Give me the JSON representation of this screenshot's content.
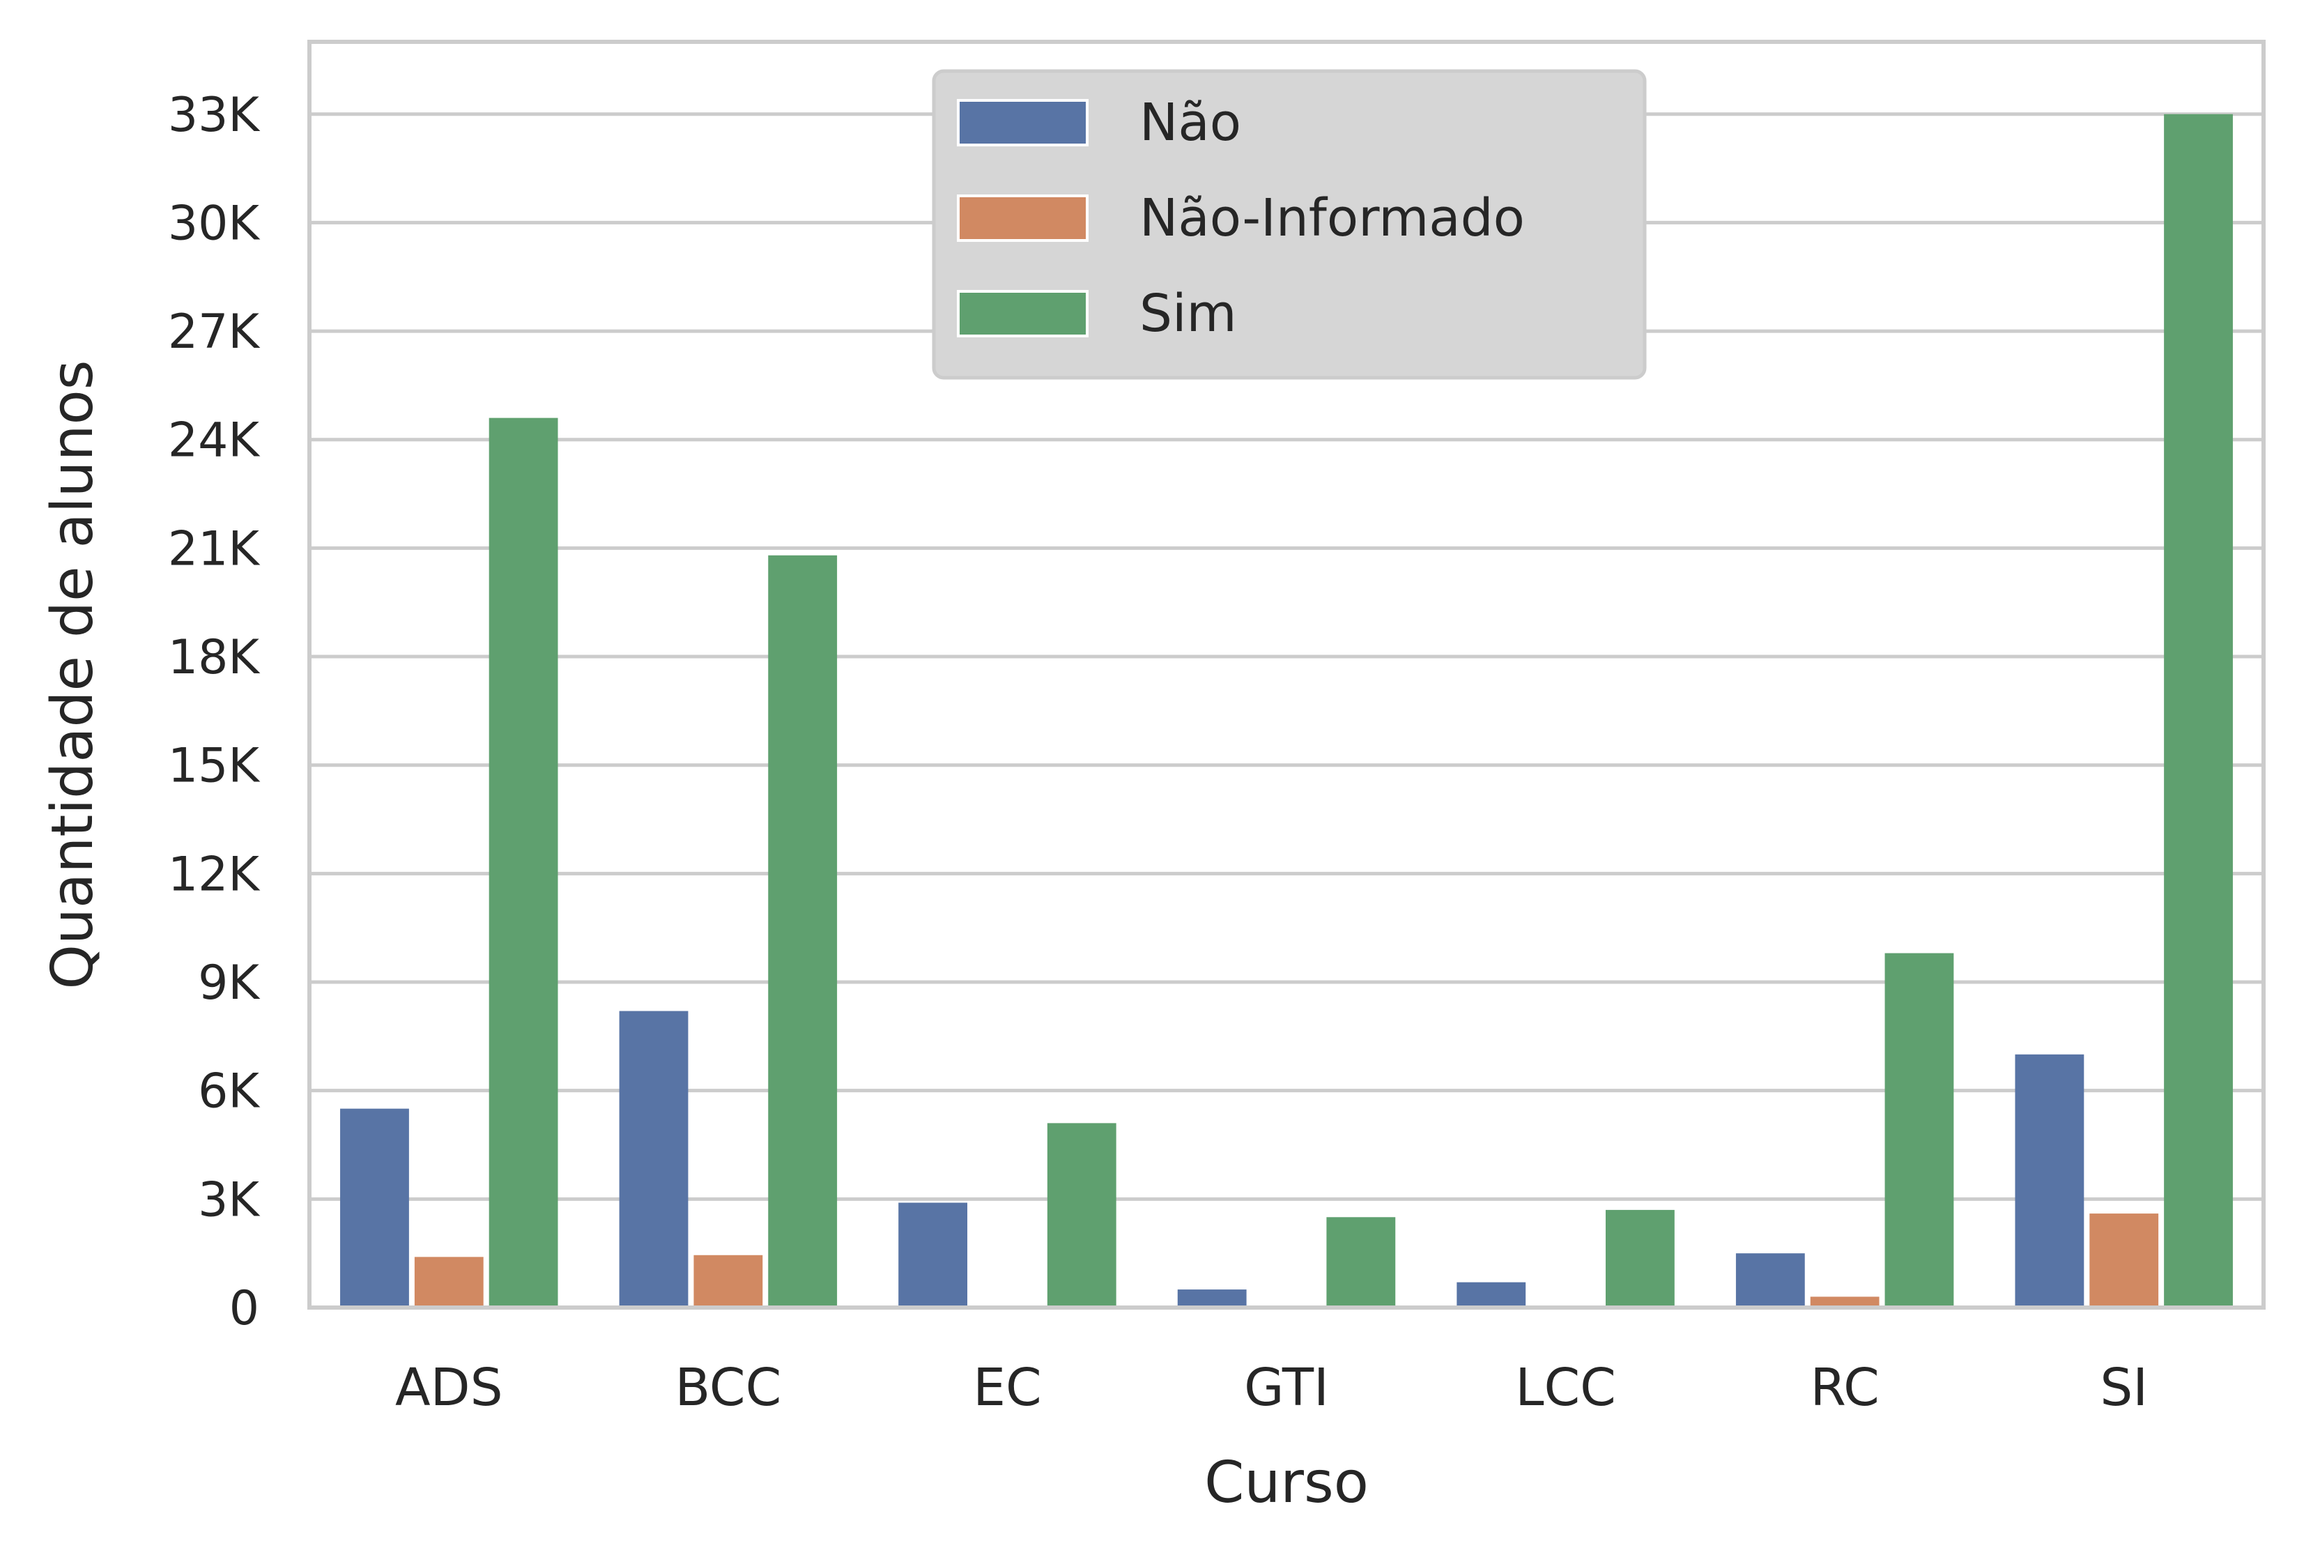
{
  "chart_data": {
    "type": "bar",
    "xlabel": "Curso",
    "ylabel": "Quantidade de alunos",
    "categories": [
      "ADS",
      "BCC",
      "EC",
      "GTI",
      "LCC",
      "RC",
      "SI"
    ],
    "ylim": [
      0,
      35000
    ],
    "yticks": [
      0,
      3000,
      6000,
      9000,
      12000,
      15000,
      18000,
      21000,
      24000,
      27000,
      30000,
      33000
    ],
    "ytick_labels": [
      "0",
      "3K",
      "6K",
      "9K",
      "12K",
      "15K",
      "18K",
      "21K",
      "24K",
      "27K",
      "30K",
      "33K"
    ],
    "grid": true,
    "legend_position": "top-center",
    "series": [
      {
        "name": "Não",
        "color": "#5874a5",
        "values": [
          5500,
          8200,
          2900,
          500,
          700,
          1500,
          7000
        ]
      },
      {
        "name": "Não-Informado",
        "color": "#d18962",
        "values": [
          1400,
          1450,
          0,
          0,
          0,
          300,
          2600
        ]
      },
      {
        "name": "Sim",
        "color": "#5fa06f",
        "values": [
          24600,
          20800,
          5100,
          2500,
          2700,
          9800,
          33000
        ]
      }
    ]
  }
}
